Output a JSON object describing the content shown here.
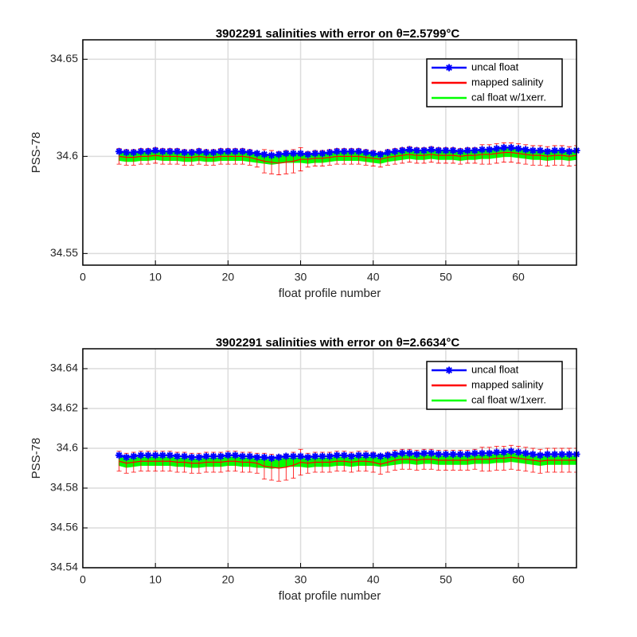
{
  "chart_data": [
    {
      "type": "line",
      "title": "3902291 salinities with error on θ=2.5799°C",
      "xlabel": "float profile number",
      "ylabel": "PSS-78",
      "xlim": [
        0,
        68
      ],
      "ylim": [
        34.544,
        34.66
      ],
      "xticks": [
        0,
        10,
        20,
        30,
        40,
        50,
        60
      ],
      "yticks": [
        34.55,
        34.6,
        34.65
      ],
      "grid": true,
      "legend": "northeast",
      "x": [
        5,
        6,
        7,
        8,
        9,
        10,
        11,
        12,
        13,
        14,
        15,
        16,
        17,
        18,
        19,
        20,
        21,
        22,
        23,
        24,
        25,
        26,
        27,
        28,
        29,
        30,
        31,
        32,
        33,
        34,
        35,
        36,
        37,
        38,
        39,
        40,
        41,
        42,
        43,
        44,
        45,
        46,
        47,
        48,
        49,
        50,
        51,
        52,
        53,
        54,
        55,
        56,
        57,
        58,
        59,
        60,
        61,
        62,
        63,
        64,
        65,
        66,
        67,
        68
      ],
      "series": [
        {
          "name": "uncal float",
          "color": "#0000ff",
          "values": [
            34.6025,
            34.602,
            34.602,
            34.6025,
            34.6025,
            34.603,
            34.6025,
            34.6025,
            34.6025,
            34.602,
            34.602,
            34.6025,
            34.602,
            34.602,
            34.6025,
            34.6025,
            34.6025,
            34.6025,
            34.602,
            34.6015,
            34.601,
            34.6005,
            34.601,
            34.6015,
            34.6015,
            34.6015,
            34.601,
            34.6015,
            34.6015,
            34.602,
            34.6025,
            34.6025,
            34.6025,
            34.6025,
            34.602,
            34.6015,
            34.601,
            34.602,
            34.6025,
            34.603,
            34.6035,
            34.603,
            34.603,
            34.6035,
            34.603,
            34.603,
            34.603,
            34.6025,
            34.603,
            34.603,
            34.6035,
            34.6035,
            34.604,
            34.6045,
            34.6045,
            34.604,
            34.6035,
            34.603,
            34.603,
            34.6025,
            34.603,
            34.603,
            34.6025,
            34.603
          ]
        },
        {
          "name": "mapped salinity",
          "color": "#ff0000",
          "values": [
            34.6,
            34.5995,
            34.5995,
            34.6,
            34.6,
            34.6005,
            34.6,
            34.6,
            34.6,
            34.5995,
            34.5995,
            34.6,
            34.5995,
            34.5995,
            34.6,
            34.6,
            34.6,
            34.6,
            34.5995,
            34.5985,
            34.5975,
            34.597,
            34.5965,
            34.597,
            34.5975,
            34.5985,
            34.5985,
            34.599,
            34.599,
            34.5995,
            34.6,
            34.6,
            34.6,
            34.6,
            34.5995,
            34.599,
            34.5985,
            34.5995,
            34.6,
            34.6005,
            34.601,
            34.6005,
            34.6005,
            34.601,
            34.6005,
            34.6005,
            34.6005,
            34.6,
            34.6005,
            34.6005,
            34.601,
            34.601,
            34.6015,
            34.602,
            34.602,
            34.6015,
            34.601,
            34.6005,
            34.6005,
            34.6,
            34.6005,
            34.6005,
            34.6,
            34.6005
          ],
          "errors": [
            0.004,
            0.004,
            0.004,
            0.004,
            0.004,
            0.004,
            0.004,
            0.004,
            0.004,
            0.004,
            0.004,
            0.004,
            0.004,
            0.004,
            0.004,
            0.004,
            0.004,
            0.004,
            0.004,
            0.004,
            0.006,
            0.006,
            0.006,
            0.006,
            0.006,
            0.006,
            0.004,
            0.004,
            0.004,
            0.004,
            0.004,
            0.004,
            0.004,
            0.004,
            0.004,
            0.004,
            0.004,
            0.004,
            0.004,
            0.004,
            0.004,
            0.004,
            0.004,
            0.004,
            0.004,
            0.004,
            0.004,
            0.004,
            0.004,
            0.004,
            0.005,
            0.005,
            0.005,
            0.005,
            0.005,
            0.005,
            0.005,
            0.005,
            0.005,
            0.005,
            0.005,
            0.005,
            0.005,
            0.005
          ]
        },
        {
          "name": "cal float w/1xerr.",
          "color": "#00ff00",
          "error": 0.002,
          "values": [
            34.6,
            34.5995,
            34.5995,
            34.6,
            34.6,
            34.6005,
            34.6,
            34.6,
            34.6,
            34.5995,
            34.5995,
            34.6,
            34.5995,
            34.5995,
            34.6,
            34.6,
            34.6,
            34.6,
            34.5995,
            34.599,
            34.5985,
            34.598,
            34.5985,
            34.599,
            34.599,
            34.599,
            34.5985,
            34.599,
            34.599,
            34.5995,
            34.6,
            34.6,
            34.6,
            34.6,
            34.5995,
            34.599,
            34.5985,
            34.5995,
            34.6,
            34.6005,
            34.601,
            34.6005,
            34.6005,
            34.601,
            34.6005,
            34.6005,
            34.6005,
            34.6,
            34.6005,
            34.6005,
            34.601,
            34.601,
            34.6015,
            34.602,
            34.602,
            34.6015,
            34.601,
            34.6005,
            34.6005,
            34.6,
            34.6005,
            34.6005,
            34.6,
            34.6005
          ]
        }
      ]
    },
    {
      "type": "line",
      "title": "3902291 salinities with error on θ=2.6634°C",
      "xlabel": "float profile number",
      "ylabel": "PSS-78",
      "xlim": [
        0,
        68
      ],
      "ylim": [
        34.54,
        34.65
      ],
      "xticks": [
        0,
        10,
        20,
        30,
        40,
        50,
        60
      ],
      "yticks": [
        34.54,
        34.56,
        34.58,
        34.6,
        34.62,
        34.64
      ],
      "grid": true,
      "legend": "northeast",
      "x": [
        5,
        6,
        7,
        8,
        9,
        10,
        11,
        12,
        13,
        14,
        15,
        16,
        17,
        18,
        19,
        20,
        21,
        22,
        23,
        24,
        25,
        26,
        27,
        28,
        29,
        30,
        31,
        32,
        33,
        34,
        35,
        36,
        37,
        38,
        39,
        40,
        41,
        42,
        43,
        44,
        45,
        46,
        47,
        48,
        49,
        50,
        51,
        52,
        53,
        54,
        55,
        56,
        57,
        58,
        59,
        60,
        61,
        62,
        63,
        64,
        65,
        66,
        67,
        68
      ],
      "series": [
        {
          "name": "uncal float",
          "color": "#0000ff",
          "values": [
            34.5965,
            34.5955,
            34.596,
            34.5965,
            34.5965,
            34.5965,
            34.5965,
            34.5965,
            34.596,
            34.596,
            34.5955,
            34.5955,
            34.596,
            34.596,
            34.596,
            34.5965,
            34.5965,
            34.596,
            34.596,
            34.5955,
            34.5955,
            34.595,
            34.5955,
            34.596,
            34.596,
            34.596,
            34.5955,
            34.596,
            34.596,
            34.596,
            34.5965,
            34.5965,
            34.596,
            34.5965,
            34.5965,
            34.5965,
            34.596,
            34.5965,
            34.597,
            34.5975,
            34.5975,
            34.597,
            34.5975,
            34.5975,
            34.597,
            34.597,
            34.597,
            34.597,
            34.597,
            34.5975,
            34.5975,
            34.5975,
            34.598,
            34.598,
            34.5985,
            34.598,
            34.5975,
            34.597,
            34.5965,
            34.597,
            34.597,
            34.597,
            34.597,
            34.597
          ]
        },
        {
          "name": "mapped salinity",
          "color": "#ff0000",
          "values": [
            34.5935,
            34.5925,
            34.593,
            34.5935,
            34.5935,
            34.5935,
            34.5935,
            34.5935,
            34.593,
            34.593,
            34.5925,
            34.5925,
            34.593,
            34.593,
            34.593,
            34.5935,
            34.5935,
            34.593,
            34.593,
            34.5925,
            34.591,
            34.5905,
            34.59,
            34.5905,
            34.5915,
            34.593,
            34.5925,
            34.593,
            34.593,
            34.593,
            34.5935,
            34.5935,
            34.593,
            34.5935,
            34.5935,
            34.593,
            34.592,
            34.593,
            34.594,
            34.5945,
            34.5945,
            34.594,
            34.5945,
            34.5945,
            34.594,
            34.594,
            34.594,
            34.594,
            34.594,
            34.5945,
            34.5945,
            34.5945,
            34.595,
            34.595,
            34.5955,
            34.595,
            34.5945,
            34.594,
            34.5935,
            34.594,
            34.594,
            34.594,
            34.594,
            34.594
          ],
          "errors": [
            0.005,
            0.005,
            0.005,
            0.005,
            0.005,
            0.005,
            0.005,
            0.005,
            0.005,
            0.005,
            0.005,
            0.005,
            0.005,
            0.005,
            0.005,
            0.005,
            0.005,
            0.005,
            0.005,
            0.005,
            0.0065,
            0.0065,
            0.0065,
            0.0065,
            0.0065,
            0.0065,
            0.005,
            0.005,
            0.005,
            0.005,
            0.005,
            0.005,
            0.005,
            0.005,
            0.005,
            0.005,
            0.005,
            0.005,
            0.005,
            0.005,
            0.005,
            0.005,
            0.005,
            0.005,
            0.005,
            0.005,
            0.005,
            0.005,
            0.005,
            0.005,
            0.006,
            0.006,
            0.006,
            0.006,
            0.006,
            0.006,
            0.006,
            0.006,
            0.006,
            0.006,
            0.006,
            0.006,
            0.006,
            0.006
          ]
        },
        {
          "name": "cal float w/1xerr.",
          "color": "#00ff00",
          "error": 0.002,
          "values": [
            34.5935,
            34.5925,
            34.593,
            34.5935,
            34.5935,
            34.5935,
            34.5935,
            34.5935,
            34.593,
            34.593,
            34.5925,
            34.5925,
            34.593,
            34.593,
            34.593,
            34.5935,
            34.5935,
            34.593,
            34.593,
            34.5925,
            34.5925,
            34.592,
            34.5925,
            34.593,
            34.593,
            34.593,
            34.5925,
            34.593,
            34.593,
            34.593,
            34.5935,
            34.5935,
            34.593,
            34.5935,
            34.5935,
            34.5935,
            34.593,
            34.5935,
            34.594,
            34.5945,
            34.5945,
            34.594,
            34.5945,
            34.5945,
            34.594,
            34.594,
            34.594,
            34.594,
            34.594,
            34.5945,
            34.5945,
            34.5945,
            34.595,
            34.595,
            34.5955,
            34.595,
            34.5945,
            34.594,
            34.5935,
            34.594,
            34.594,
            34.594,
            34.594,
            34.594
          ]
        }
      ]
    }
  ]
}
